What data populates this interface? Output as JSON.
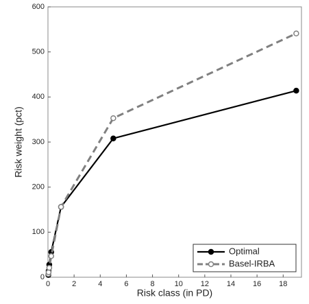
{
  "chart_data": {
    "type": "line",
    "x_label": "Risk class (in PD)",
    "y_label": "Risk weight (pct)",
    "x": [
      0.03,
      0.05,
      0.1,
      0.25,
      1,
      5,
      19
    ],
    "series": [
      {
        "name": "Optimal",
        "color": "#000000",
        "values": [
          5,
          14,
          28,
          56,
          156,
          308,
          414
        ]
      },
      {
        "name": "Basel-IRBA",
        "color": "#808080",
        "values": [
          7,
          11,
          21,
          47,
          156,
          353,
          541
        ]
      }
    ],
    "xlim": [
      0,
      19.4
    ],
    "xticks": [
      0,
      2,
      4,
      6,
      8,
      10,
      12,
      14,
      16,
      18
    ],
    "ylim": [
      0,
      600
    ],
    "yticks": [
      0,
      100,
      200,
      300,
      400,
      500,
      600
    ],
    "legend": "lower right"
  }
}
